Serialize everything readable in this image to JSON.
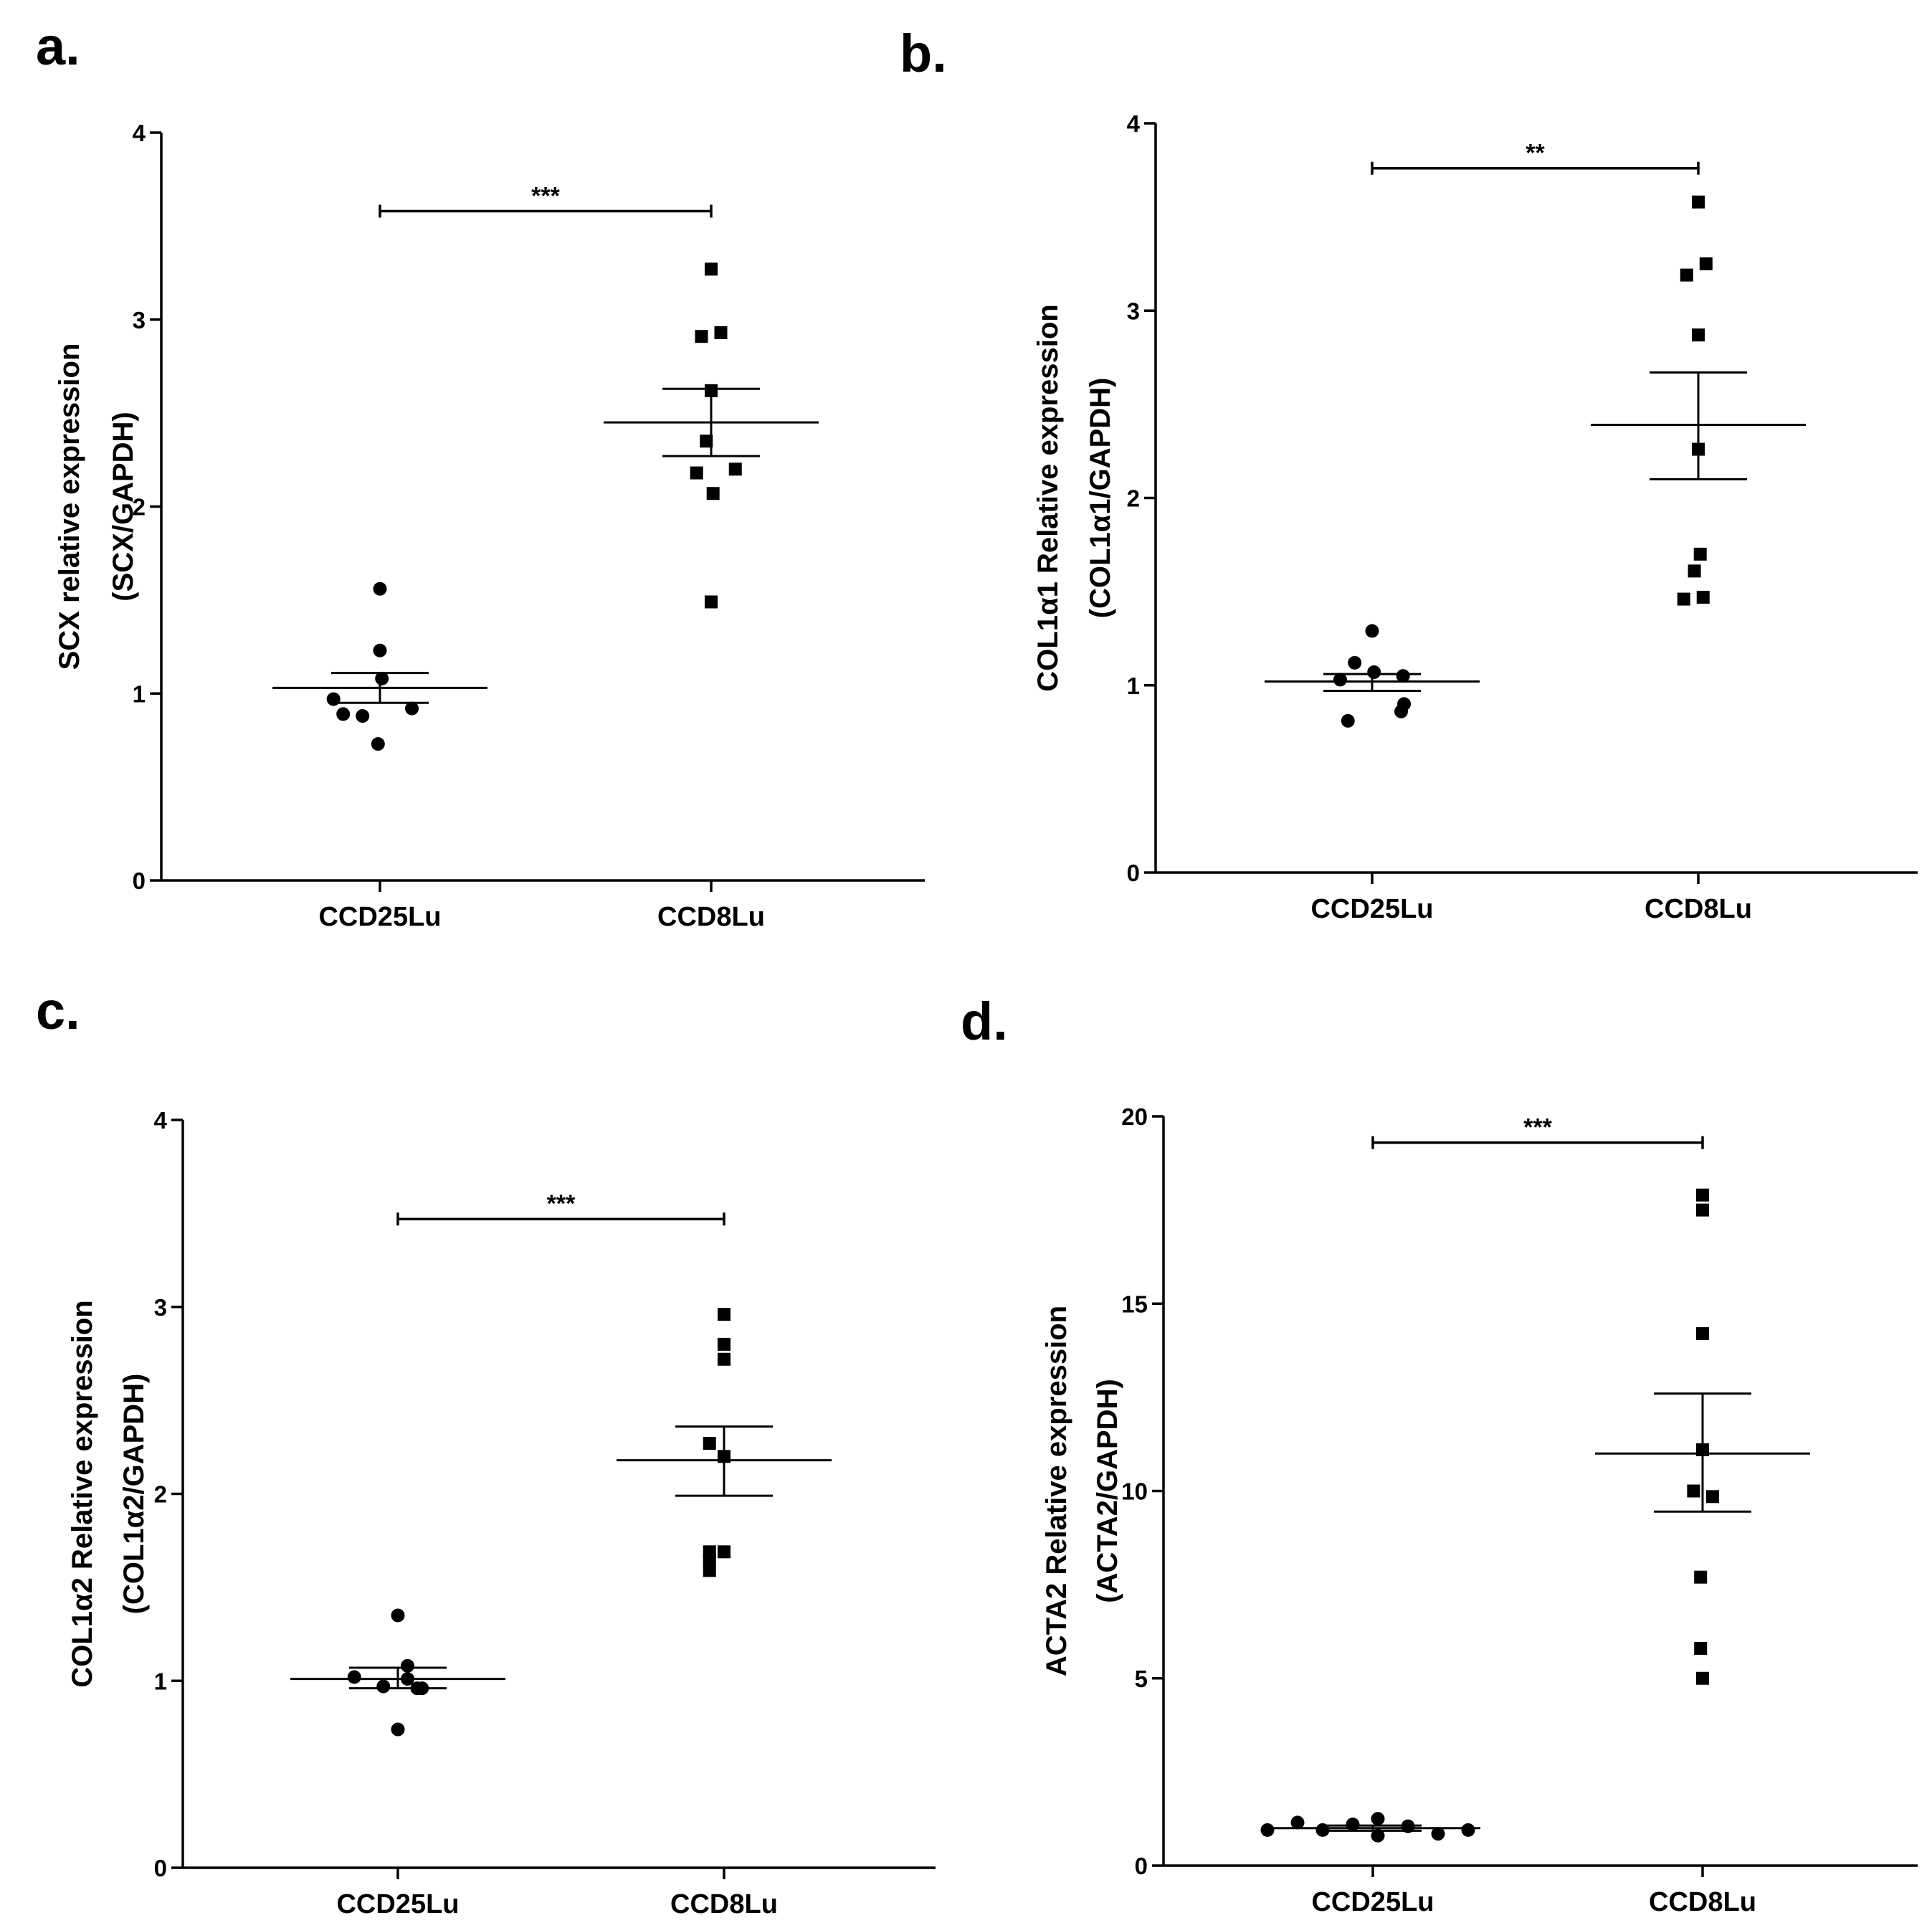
{
  "colors": {
    "ink": "#000000",
    "background": "#ffffff"
  },
  "chart_data": [
    {
      "type": "scatter",
      "panel": "a.",
      "ylabel": [
        "SCX relative expression",
        "(SCX/GAPDH)"
      ],
      "categories": [
        "CCD25Lu",
        "CCD8Lu"
      ],
      "yticks": [
        0,
        1,
        2,
        3,
        4
      ],
      "ylim": [
        0,
        4
      ],
      "series": [
        {
          "name": "CCD25Lu",
          "marker": "circle",
          "values": [
            1.56,
            1.23,
            1.08,
            0.97,
            0.92,
            0.88,
            0.89,
            0.73
          ],
          "mean": 1.03,
          "sem_low": 0.95,
          "sem_high": 1.11
        },
        {
          "name": "CCD8Lu",
          "marker": "square",
          "values": [
            3.27,
            2.91,
            2.93,
            2.62,
            2.35,
            2.2,
            2.18,
            2.07,
            1.49
          ],
          "mean": 2.45,
          "sem_low": 2.27,
          "sem_high": 2.63
        }
      ],
      "significance": {
        "label": "***",
        "y": 3.58
      }
    },
    {
      "type": "scatter",
      "panel": "b.",
      "ylabel": [
        "COL1α1 Relative expression",
        "(COL1α1/GAPDH)"
      ],
      "categories": [
        "CCD25Lu",
        "CCD8Lu"
      ],
      "yticks": [
        0,
        1,
        2,
        3,
        4
      ],
      "ylim": [
        0,
        4
      ],
      "series": [
        {
          "name": "CCD25Lu",
          "marker": "circle",
          "values": [
            1.29,
            1.12,
            1.07,
            1.03,
            1.05,
            0.9,
            0.86,
            0.81
          ],
          "mean": 1.02,
          "sem_low": 0.97,
          "sem_high": 1.06
        },
        {
          "name": "CCD8Lu",
          "marker": "square",
          "values": [
            3.58,
            3.25,
            3.19,
            2.87,
            2.26,
            1.7,
            1.61,
            1.46,
            1.47
          ],
          "mean": 2.39,
          "sem_low": 2.1,
          "sem_high": 2.67
        }
      ],
      "significance": {
        "label": "**",
        "y": 3.76
      }
    },
    {
      "type": "scatter",
      "panel": "c.",
      "ylabel": [
        "COL1α2 Relative expression",
        "(COL1α2/GAPDH)"
      ],
      "categories": [
        "CCD25Lu",
        "CCD8Lu"
      ],
      "yticks": [
        0,
        1,
        2,
        3,
        4
      ],
      "ylim": [
        0,
        4
      ],
      "series": [
        {
          "name": "CCD25Lu",
          "marker": "circle",
          "values": [
            1.35,
            1.08,
            1.02,
            1.01,
            0.97,
            0.96,
            0.96,
            0.74
          ],
          "mean": 1.01,
          "sem_low": 0.96,
          "sem_high": 1.07
        },
        {
          "name": "CCD8Lu",
          "marker": "square",
          "values": [
            2.96,
            2.8,
            2.72,
            2.27,
            2.2,
            1.69,
            1.69,
            1.65,
            1.59
          ],
          "mean": 2.18,
          "sem_low": 1.99,
          "sem_high": 2.36
        }
      ],
      "significance": {
        "label": "***",
        "y": 3.47
      }
    },
    {
      "type": "scatter",
      "panel": "d.",
      "ylabel": [
        "ACTA2 Relative expression",
        "(ACTA2/GAPDH)"
      ],
      "categories": [
        "CCD25Lu",
        "CCD8Lu"
      ],
      "yticks": [
        0,
        5,
        10,
        15,
        20
      ],
      "ylim": [
        0,
        20
      ],
      "series": [
        {
          "name": "CCD25Lu",
          "marker": "circle",
          "values": [
            0.95,
            1.15,
            0.95,
            1.1,
            1.25,
            0.8,
            1.05,
            0.85,
            0.95
          ],
          "mean": 1.0,
          "sem_low": 0.93,
          "sem_high": 1.07
        },
        {
          "name": "CCD8Lu",
          "marker": "square",
          "values": [
            17.9,
            17.5,
            14.2,
            11.1,
            10.0,
            9.85,
            7.7,
            5.8,
            5.0
          ],
          "mean": 11.0,
          "sem_low": 9.45,
          "sem_high": 12.6
        }
      ],
      "significance": {
        "label": "***",
        "y": 19.3
      }
    }
  ]
}
